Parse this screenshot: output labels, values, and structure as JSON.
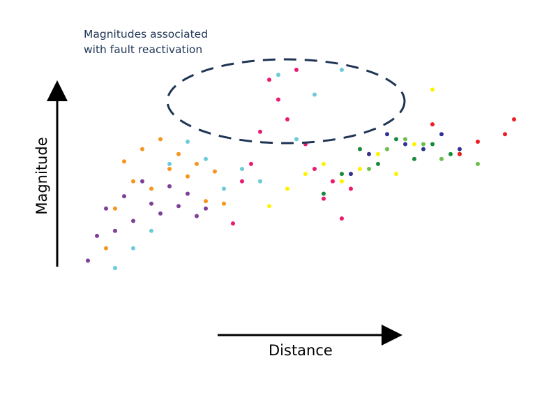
{
  "chart_data": {
    "type": "scatter",
    "xlabel": "Distance",
    "ylabel": "Magnitude",
    "annotations": [
      {
        "text_lines": [
          "Magnitudes associated",
          "with fault reactivation"
        ],
        "shape": "dashed-ellipse",
        "color": "#1f3556"
      }
    ],
    "axes": {
      "style": "arrows",
      "ticks": "none",
      "grid": false
    },
    "series": [
      {
        "color": "#7e3f98",
        "points": [
          [
            0.04,
            0.23
          ],
          [
            0.06,
            0.33
          ],
          [
            0.08,
            0.44
          ],
          [
            0.1,
            0.35
          ],
          [
            0.12,
            0.49
          ],
          [
            0.14,
            0.39
          ],
          [
            0.16,
            0.55
          ],
          [
            0.18,
            0.46
          ],
          [
            0.2,
            0.42
          ],
          [
            0.22,
            0.53
          ],
          [
            0.24,
            0.45
          ],
          [
            0.26,
            0.5
          ],
          [
            0.28,
            0.41
          ],
          [
            0.3,
            0.44
          ]
        ]
      },
      {
        "color": "#f7941d",
        "points": [
          [
            0.08,
            0.28
          ],
          [
            0.1,
            0.44
          ],
          [
            0.12,
            0.63
          ],
          [
            0.14,
            0.55
          ],
          [
            0.16,
            0.68
          ],
          [
            0.18,
            0.52
          ],
          [
            0.2,
            0.72
          ],
          [
            0.22,
            0.6
          ],
          [
            0.24,
            0.66
          ],
          [
            0.26,
            0.57
          ],
          [
            0.28,
            0.62
          ],
          [
            0.3,
            0.47
          ],
          [
            0.32,
            0.59
          ],
          [
            0.34,
            0.46
          ]
        ]
      },
      {
        "color": "#6bcbd9",
        "points": [
          [
            0.1,
            0.2
          ],
          [
            0.14,
            0.28
          ],
          [
            0.18,
            0.35
          ],
          [
            0.22,
            0.62
          ],
          [
            0.26,
            0.71
          ],
          [
            0.3,
            0.64
          ],
          [
            0.34,
            0.52
          ],
          [
            0.38,
            0.6
          ],
          [
            0.42,
            0.55
          ],
          [
            0.46,
            0.98
          ],
          [
            0.5,
            0.72
          ],
          [
            0.54,
            0.9
          ],
          [
            0.6,
            1.0
          ]
        ]
      },
      {
        "color": "#ea1a6f",
        "points": [
          [
            0.36,
            0.38
          ],
          [
            0.38,
            0.55
          ],
          [
            0.4,
            0.62
          ],
          [
            0.42,
            0.75
          ],
          [
            0.44,
            0.96
          ],
          [
            0.46,
            0.88
          ],
          [
            0.48,
            0.8
          ],
          [
            0.5,
            1.0
          ],
          [
            0.52,
            0.7
          ],
          [
            0.54,
            0.6
          ],
          [
            0.56,
            0.48
          ],
          [
            0.58,
            0.55
          ],
          [
            0.6,
            0.4
          ],
          [
            0.62,
            0.52
          ]
        ]
      },
      {
        "color": "#fff200",
        "points": [
          [
            0.44,
            0.45
          ],
          [
            0.48,
            0.52
          ],
          [
            0.52,
            0.58
          ],
          [
            0.56,
            0.62
          ],
          [
            0.6,
            0.55
          ],
          [
            0.64,
            0.6
          ],
          [
            0.68,
            0.66
          ],
          [
            0.72,
            0.58
          ],
          [
            0.76,
            0.7
          ],
          [
            0.8,
            0.92
          ]
        ]
      },
      {
        "color": "#178a3c",
        "points": [
          [
            0.56,
            0.5
          ],
          [
            0.6,
            0.58
          ],
          [
            0.64,
            0.68
          ],
          [
            0.68,
            0.62
          ],
          [
            0.72,
            0.72
          ],
          [
            0.76,
            0.64
          ],
          [
            0.8,
            0.7
          ],
          [
            0.84,
            0.66
          ]
        ]
      },
      {
        "color": "#2e3192",
        "points": [
          [
            0.62,
            0.58
          ],
          [
            0.66,
            0.66
          ],
          [
            0.7,
            0.74
          ],
          [
            0.74,
            0.7
          ],
          [
            0.78,
            0.68
          ],
          [
            0.82,
            0.74
          ],
          [
            0.86,
            0.68
          ]
        ]
      },
      {
        "color": "#6abf4b",
        "points": [
          [
            0.66,
            0.6
          ],
          [
            0.7,
            0.68
          ],
          [
            0.74,
            0.72
          ],
          [
            0.78,
            0.7
          ],
          [
            0.82,
            0.64
          ],
          [
            0.86,
            0.66
          ],
          [
            0.9,
            0.62
          ]
        ]
      },
      {
        "color": "#ed1c24",
        "points": [
          [
            0.8,
            0.78
          ],
          [
            0.86,
            0.66
          ],
          [
            0.9,
            0.71
          ],
          [
            0.96,
            0.74
          ],
          [
            0.98,
            0.8
          ]
        ]
      }
    ]
  }
}
